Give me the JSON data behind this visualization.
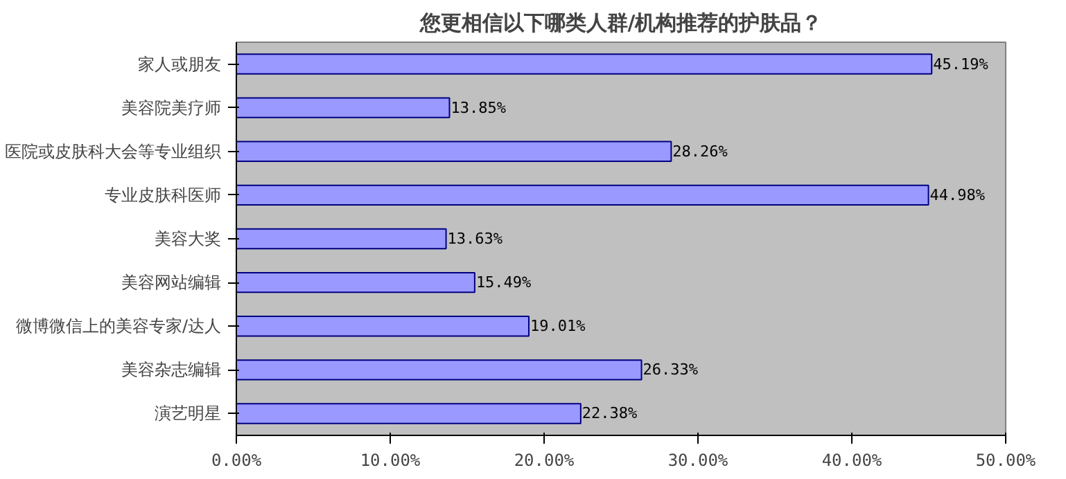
{
  "chart_data": {
    "type": "bar",
    "orientation": "horizontal",
    "title": "您更相信以下哪类人群/机构推荐的护肤品？",
    "categories": [
      "家人或朋友",
      "美容院美疗师",
      "医院或皮肤科大会等专业组织",
      "专业皮肤科医师",
      "美容大奖",
      "美容网站编辑",
      "微博微信上的美容专家/达人",
      "美容杂志编辑",
      "演艺明星"
    ],
    "values": [
      45.19,
      13.85,
      28.26,
      44.98,
      13.63,
      15.49,
      19.01,
      26.33,
      22.38
    ],
    "value_labels": [
      "45.19%",
      "13.85%",
      "28.26%",
      "44.98%",
      "13.63%",
      "15.49%",
      "19.01%",
      "26.33%",
      "22.38%"
    ],
    "color": "#9999ff",
    "xlim": [
      0,
      50
    ],
    "xticks": [
      {
        "value": 0,
        "label": "0.00%"
      },
      {
        "value": 10,
        "label": "10.00%"
      },
      {
        "value": 20,
        "label": "20.00%"
      },
      {
        "value": 30,
        "label": "30.00%"
      },
      {
        "value": 40,
        "label": "40.00%"
      },
      {
        "value": 50,
        "label": "50.00%"
      }
    ],
    "grid": false
  }
}
